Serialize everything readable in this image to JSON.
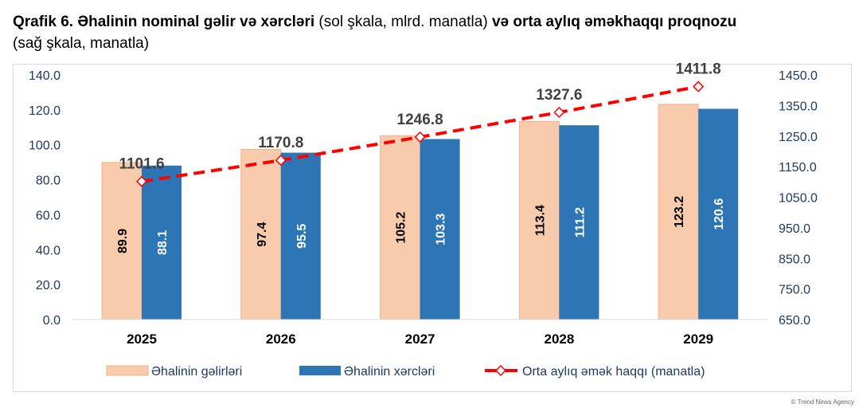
{
  "title": {
    "bold_1": "Qrafik 6. Əhalinin nominal gəlir və xərcləri",
    "normal_1": " (sol şkala, mlrd. manatla) ",
    "bold_2": "və orta aylıq əməkhaqqı proqnozu",
    "normal_2": "(sağ şkala, manatla)"
  },
  "watermark": "© Trend News Agency",
  "chart_data": {
    "type": "bar+line",
    "categories": [
      "2025",
      "2026",
      "2027",
      "2028",
      "2029"
    ],
    "series": [
      {
        "name": "Əhalinin gəlirləri",
        "type": "bar",
        "axis": "left",
        "color": "#f8cbad",
        "values": [
          89.9,
          97.4,
          105.2,
          113.4,
          123.2
        ],
        "labels": [
          "89.9",
          "97.4",
          "105.2",
          "113.4",
          "123.2"
        ]
      },
      {
        "name": "Əhalinin xərcləri",
        "type": "bar",
        "axis": "right-bar",
        "color": "#2e75b6",
        "values": [
          88.1,
          95.5,
          103.3,
          111.2,
          120.6
        ],
        "labels": [
          "88.1",
          "95.5",
          "103.3",
          "111.2",
          "120.6"
        ]
      },
      {
        "name": "Orta aylıq əmək haqqı (manatla)",
        "type": "line",
        "axis": "right",
        "color": "#ff0000",
        "style": "dashed",
        "marker": "diamond-open",
        "values": [
          1101.6,
          1170.8,
          1246.8,
          1327.6,
          1411.8
        ],
        "labels": [
          "1101.6",
          "1170.8",
          "1246.8",
          "1327.6",
          "1411.8"
        ]
      }
    ],
    "left_axis": {
      "ylim": [
        0,
        140
      ],
      "ticks": [
        "0.0",
        "20.0",
        "40.0",
        "60.0",
        "80.0",
        "100.0",
        "120.0",
        "140.0"
      ]
    },
    "right_axis": {
      "ylim": [
        650,
        1450
      ],
      "ticks": [
        "650.0",
        "750.0",
        "850.0",
        "950.0",
        "1050.0",
        "1150.0",
        "1250.0",
        "1350.0",
        "1450.0"
      ]
    },
    "grid": false,
    "legend": "bottom"
  }
}
